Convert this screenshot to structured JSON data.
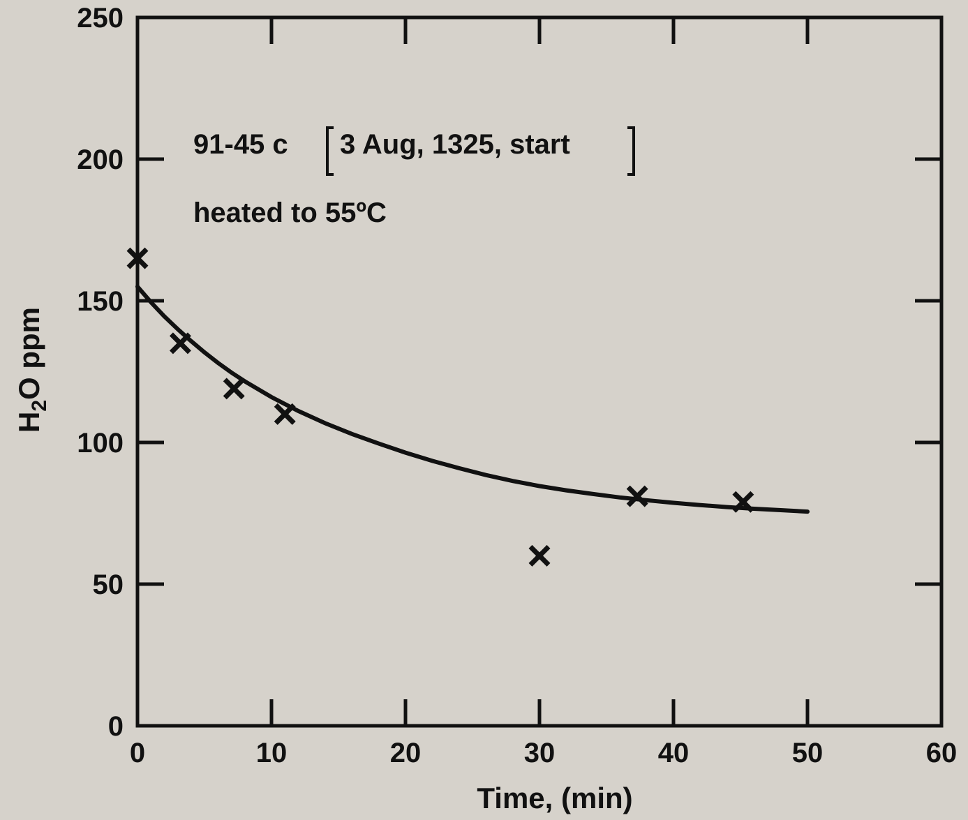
{
  "chart_data": {
    "type": "scatter",
    "xlabel": "Time, (min)",
    "ylabel_parts": [
      "H",
      "2",
      "O ppm"
    ],
    "xlim": [
      0,
      60
    ],
    "ylim": [
      0,
      250
    ],
    "x_ticks": [
      0,
      10,
      20,
      30,
      40,
      50,
      60
    ],
    "y_ticks": [
      0,
      50,
      100,
      150,
      200,
      250
    ],
    "grid": false,
    "annotations": [
      {
        "text_before": "91-45 c",
        "bracket_text": "3 Aug, 1325, start"
      },
      {
        "text": "heated to 55ºC"
      }
    ],
    "points": [
      {
        "x": 0,
        "y": 165
      },
      {
        "x": 3.2,
        "y": 135
      },
      {
        "x": 7.2,
        "y": 119
      },
      {
        "x": 11,
        "y": 110
      },
      {
        "x": 30,
        "y": 60
      },
      {
        "x": 37.3,
        "y": 81
      },
      {
        "x": 45.2,
        "y": 79
      }
    ],
    "fit_curve": {
      "x": [
        0,
        1,
        2,
        3,
        4,
        5,
        6,
        7,
        8,
        10,
        12,
        14,
        16,
        18,
        20,
        22,
        24,
        26,
        28,
        30,
        32,
        34,
        36,
        38,
        40,
        42,
        44,
        46,
        48,
        50
      ],
      "y": [
        155,
        149.5,
        144.5,
        140,
        135.8,
        131.8,
        128.1,
        124.7,
        121.6,
        116,
        111.1,
        106.8,
        103,
        99.6,
        96.4,
        93.5,
        90.9,
        88.5,
        86.4,
        84.6,
        83.1,
        81.8,
        80.6,
        79.6,
        78.7,
        77.9,
        77.2,
        76.6,
        76.1,
        75.6
      ]
    }
  }
}
